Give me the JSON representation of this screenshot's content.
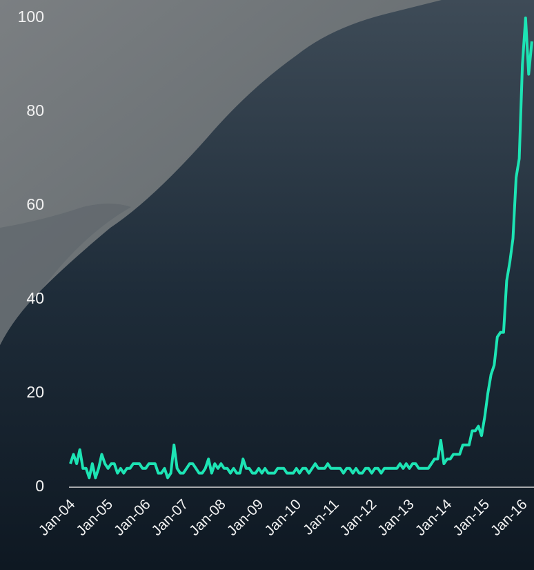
{
  "chart_data": {
    "type": "line",
    "color": "#1de4b4",
    "ylim": [
      0,
      100
    ],
    "yticks": [
      0,
      20,
      40,
      60,
      80,
      100
    ],
    "categories": [
      "Jan-04",
      null,
      null,
      null,
      null,
      null,
      null,
      null,
      null,
      null,
      null,
      null,
      "Jan-05",
      null,
      null,
      null,
      null,
      null,
      null,
      null,
      null,
      null,
      null,
      null,
      "Jan-06",
      null,
      null,
      null,
      null,
      null,
      null,
      null,
      null,
      null,
      null,
      null,
      "Jan-07",
      null,
      null,
      null,
      null,
      null,
      null,
      null,
      null,
      null,
      null,
      null,
      "Jan-08",
      null,
      null,
      null,
      null,
      null,
      null,
      null,
      null,
      null,
      null,
      null,
      "Jan-09",
      null,
      null,
      null,
      null,
      null,
      null,
      null,
      null,
      null,
      null,
      null,
      "Jan-10",
      null,
      null,
      null,
      null,
      null,
      null,
      null,
      null,
      null,
      null,
      null,
      "Jan-11",
      null,
      null,
      null,
      null,
      null,
      null,
      null,
      null,
      null,
      null,
      null,
      "Jan-12",
      null,
      null,
      null,
      null,
      null,
      null,
      null,
      null,
      null,
      null,
      null,
      "Jan-13",
      null,
      null,
      null,
      null,
      null,
      null,
      null,
      null,
      null,
      null,
      null,
      "Jan-14",
      null,
      null,
      null,
      null,
      null,
      null,
      null,
      null,
      null,
      null,
      null,
      "Jan-15",
      null,
      null,
      null,
      null,
      null,
      null,
      null,
      null,
      null,
      null,
      null,
      "Jan-16",
      null,
      null,
      null
    ],
    "values": [
      5,
      7,
      5,
      8,
      4,
      4,
      2,
      5,
      2,
      4,
      7,
      5,
      4,
      5,
      5,
      3,
      4,
      3,
      4,
      4,
      5,
      5,
      5,
      4,
      4,
      5,
      5,
      5,
      3,
      3,
      4,
      2,
      3,
      9,
      4,
      3,
      3,
      4,
      5,
      5,
      4,
      3,
      3,
      4,
      6,
      3,
      5,
      4,
      5,
      4,
      4,
      3,
      4,
      3,
      3,
      6,
      4,
      4,
      3,
      3,
      4,
      3,
      4,
      3,
      3,
      3,
      4,
      4,
      4,
      3,
      3,
      3,
      4,
      3,
      4,
      4,
      3,
      4,
      5,
      4,
      4,
      4,
      5,
      4,
      4,
      4,
      4,
      3,
      4,
      4,
      3,
      4,
      3,
      3,
      4,
      4,
      3,
      4,
      4,
      3,
      4,
      4,
      4,
      4,
      4,
      5,
      4,
      5,
      4,
      5,
      5,
      4,
      4,
      4,
      4,
      5,
      6,
      6,
      10,
      5,
      6,
      6,
      7,
      7,
      7,
      9,
      9,
      9,
      12,
      12,
      13,
      11,
      15,
      20,
      24,
      26,
      32,
      33,
      33,
      44,
      48,
      53,
      66,
      70,
      90,
      100,
      88,
      95
    ]
  }
}
